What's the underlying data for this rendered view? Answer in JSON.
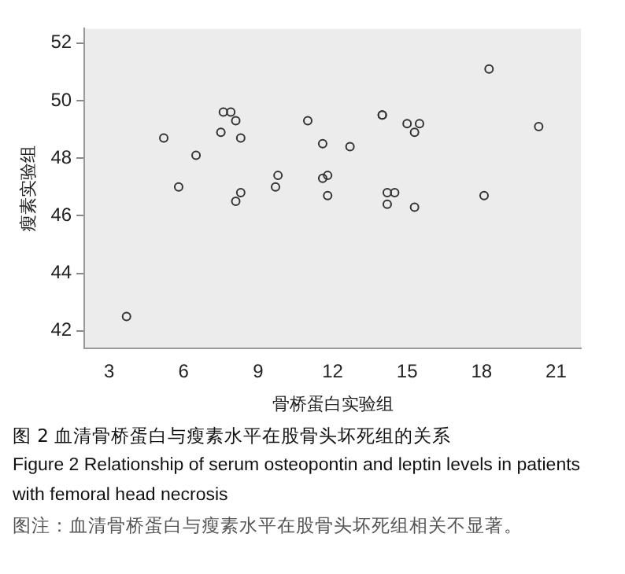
{
  "chart_data": {
    "type": "scatter",
    "xlabel": "骨桥蛋白实验组",
    "ylabel": "瘦素实验组",
    "x": [
      3.7,
      5.2,
      5.8,
      6.5,
      7.5,
      7.6,
      7.9,
      8.1,
      8.3,
      8.1,
      8.3,
      9.7,
      9.8,
      11.0,
      11.6,
      11.6,
      11.8,
      11.8,
      12.7,
      14.0,
      14.0,
      15.0,
      15.5,
      15.3,
      14.2,
      14.5,
      14.2,
      15.3,
      18.3,
      20.3,
      18.1
    ],
    "values": [
      42.5,
      48.7,
      47.0,
      48.1,
      48.9,
      49.6,
      49.6,
      49.3,
      48.7,
      46.5,
      46.8,
      47.0,
      47.4,
      49.3,
      48.5,
      47.3,
      47.4,
      46.7,
      48.4,
      49.5,
      49.5,
      49.2,
      49.2,
      48.9,
      46.8,
      46.8,
      46.4,
      46.3,
      51.1,
      49.1,
      46.7
    ],
    "color": "#333333",
    "marker": "circle",
    "grid": false,
    "legend": false,
    "xlim": [
      2,
      22
    ],
    "xticks": [
      3,
      6,
      9,
      12,
      15,
      18,
      21
    ],
    "ylim": [
      41.4,
      52.5
    ],
    "yticks": [
      42,
      44,
      46,
      48,
      50,
      52
    ],
    "annotations": [
      "图 2 血清骨桥蛋白与瘦素水平在股骨头坏死组的关系",
      "Figure 2    Relationship of serum osteopontin and leptin levels in patients with femoral head necrosis",
      "图注：血清骨桥蛋白与瘦素水平在股骨头坏死组相关不显著。"
    ]
  }
}
